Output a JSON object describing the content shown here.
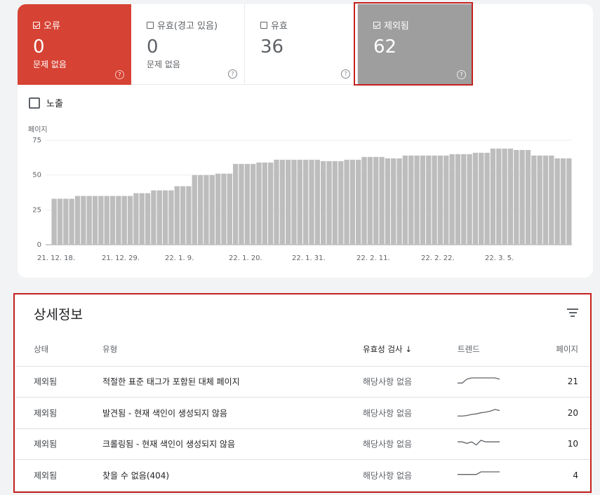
{
  "tiles": [
    {
      "label": "오류",
      "count": "0",
      "sub": "문제 없음",
      "checked": true
    },
    {
      "label": "유효(경고 있음)",
      "count": "0",
      "sub": "문제 없음",
      "checked": false
    },
    {
      "label": "유효",
      "count": "36",
      "sub": "",
      "checked": false
    },
    {
      "label": "제외됨",
      "count": "62",
      "sub": "",
      "checked": true
    }
  ],
  "impressions_label": "노출",
  "chart_data": {
    "type": "bar",
    "ylabel": "페이지",
    "ylim": [
      0,
      75
    ],
    "yticks": [
      "0",
      "25",
      "50",
      "75"
    ],
    "xticks": [
      "21. 12. 18.",
      "21. 12. 29.",
      "22. 1. 9.",
      "22. 1. 20.",
      "22. 1. 31.",
      "22. 2. 11.",
      "22. 2. 22.",
      "22. 3. 5."
    ],
    "values": [
      33,
      33,
      33,
      33,
      35,
      35,
      35,
      35,
      35,
      35,
      35,
      35,
      35,
      35,
      37,
      37,
      37,
      39,
      39,
      39,
      39,
      42,
      42,
      42,
      50,
      50,
      50,
      50,
      51,
      51,
      51,
      58,
      58,
      58,
      58,
      59,
      59,
      59,
      61,
      61,
      61,
      61,
      61,
      61,
      61,
      61,
      60,
      60,
      60,
      60,
      61,
      61,
      61,
      63,
      63,
      63,
      63,
      62,
      62,
      62,
      64,
      64,
      64,
      64,
      64,
      64,
      64,
      64,
      65,
      65,
      65,
      65,
      66,
      66,
      66,
      69,
      69,
      69,
      69,
      68,
      68,
      68,
      64,
      64,
      64,
      64,
      62,
      62,
      62
    ],
    "color": "#bdbdbd"
  },
  "details": {
    "title": "상세정보",
    "headers": {
      "status": "상태",
      "type": "유형",
      "validation": "유효성 검사 ↓",
      "trend": "트렌드",
      "pages": "페이지"
    },
    "rows": [
      {
        "status": "제외됨",
        "type": "적절한 표준 태그가 포함된 대체 페이지",
        "validation": "해당사항 없음",
        "pages": "21",
        "trend": [
          17,
          17,
          20,
          21,
          21,
          21,
          21,
          21,
          21,
          20
        ]
      },
      {
        "status": "제외됨",
        "type": "발견됨 - 현재 색인이 생성되지 않음",
        "validation": "해당사항 없음",
        "pages": "20",
        "trend": [
          8,
          8,
          9,
          11,
          12,
          14,
          15,
          17,
          20,
          18
        ]
      },
      {
        "status": "제외됨",
        "type": "크롤링됨 - 현재 색인이 생성되지 않음",
        "validation": "해당사항 없음",
        "pages": "10",
        "trend": [
          10,
          10,
          9,
          10,
          8,
          11,
          10,
          10,
          10,
          10
        ]
      },
      {
        "status": "제외됨",
        "type": "찾을 수 없음(404)",
        "validation": "해당사항 없음",
        "pages": "4",
        "trend": [
          3,
          3,
          3,
          3,
          3,
          4,
          4,
          4,
          4,
          4
        ]
      }
    ]
  }
}
